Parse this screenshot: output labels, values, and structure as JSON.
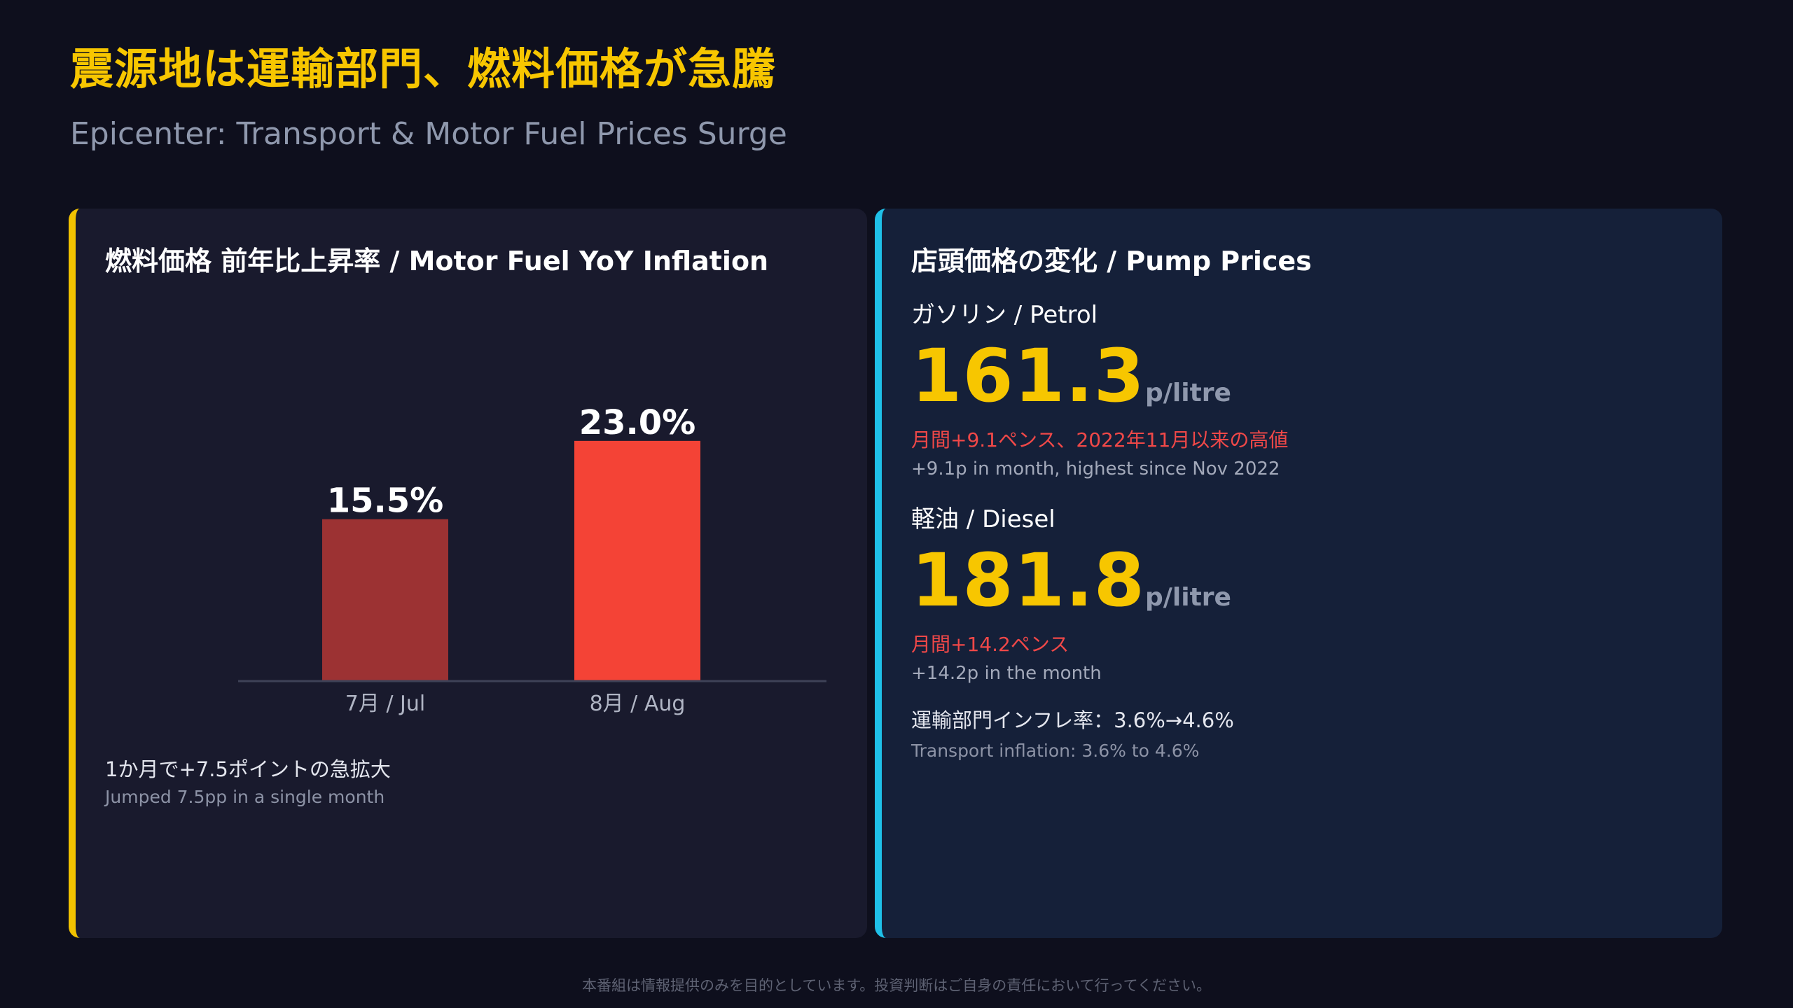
{
  "header": {
    "title": "震源地は運輸部門、燃料価格が急騰",
    "subtitle": "Epicenter: Transport & Motor Fuel Prices Surge"
  },
  "left_panel": {
    "heading": "燃料価格 前年比上昇率 / Motor Fuel YoY Inflation",
    "note_main": "1か月で+7.5ポイントの急拡大",
    "note_sub": "Jumped 7.5pp in a single month"
  },
  "chart_data": {
    "type": "bar",
    "title": "燃料価格 前年比上昇率 / Motor Fuel YoY Inflation",
    "categories": [
      "7月 / Jul",
      "8月 / Aug"
    ],
    "values": [
      15.5,
      23.0
    ],
    "data_labels": [
      "15.5%",
      "23.0%"
    ],
    "bar_colors": [
      "#9c3233",
      "#f44336"
    ],
    "ylim": [
      0,
      25
    ],
    "grid": false,
    "xlabel": "",
    "ylabel": ""
  },
  "right_panel": {
    "heading": "店頭価格の変化 / Pump Prices",
    "petrol": {
      "label": "ガソリン / Petrol",
      "price": "161.3",
      "unit": "p/litre",
      "change_jp": "月間+9.1ペンス、2022年11月以来の高値",
      "change_en": "+9.1p in month, highest since Nov 2022"
    },
    "diesel": {
      "label": "軽油 / Diesel",
      "price": "181.8",
      "unit": "p/litre",
      "change_jp": "月間+14.2ペンス",
      "change_en": "+14.2p in the month"
    },
    "transport": {
      "jp": "運輸部門インフレ率：3.6%→4.6%",
      "en": "Transport inflation: 3.6% to 4.6%"
    }
  },
  "footer": {
    "disclaimer": "本番組は情報提供のみを目的としています。投資判断はご自身の責任において行ってください。"
  },
  "colors": {
    "accent_yellow": "#f7c600",
    "accent_cyan": "#1fc0e8",
    "alert_red": "#f04848"
  }
}
